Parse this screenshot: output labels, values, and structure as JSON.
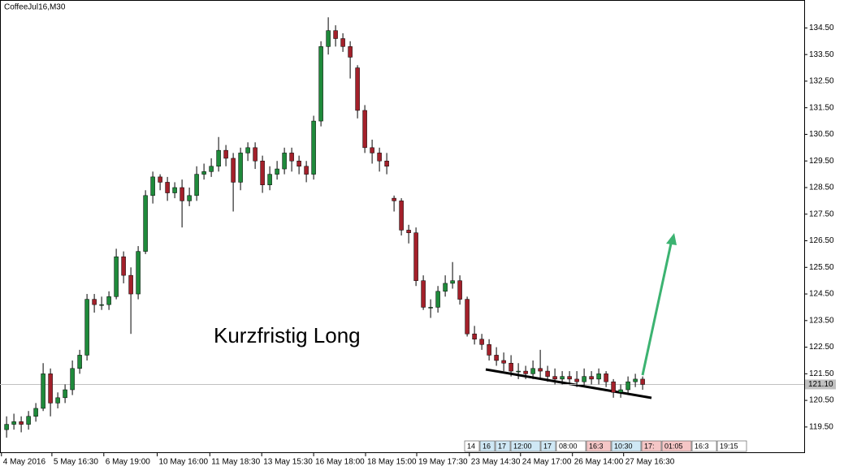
{
  "chart_data": {
    "type": "candlestick",
    "title": "CoffeeJul16,M30",
    "annotation": "Kurzfristig Long",
    "up_color": "#1f8a3b",
    "down_color": "#a3202a",
    "open": [
      119.4,
      119.6,
      119.7,
      119.6,
      119.9,
      120.2,
      121.5,
      120.4,
      120.6,
      120.9,
      121.7,
      122.2,
      124.3,
      124.1,
      124.1,
      124.4,
      125.9,
      125.2,
      124.5,
      126.1,
      128.2,
      128.9,
      128.7,
      128.3,
      128.5,
      128.0,
      128.2,
      129.0,
      129.1,
      129.3,
      129.9,
      129.6,
      128.7,
      129.8,
      130.0,
      129.5,
      128.6,
      129.0,
      129.2,
      129.8,
      129.5,
      129.3,
      129.0,
      131.0,
      133.8,
      134.4,
      134.1,
      133.8,
      133.0,
      131.4,
      130.0,
      129.8,
      129.5,
      128.1,
      128.0,
      126.9,
      126.8,
      125.0,
      124.0,
      124.0,
      124.6,
      124.9,
      125.0,
      124.3,
      123.0,
      122.8,
      122.6,
      122.2,
      122.0,
      121.9,
      121.6,
      121.6,
      121.5,
      121.7,
      121.6,
      121.4,
      121.3,
      121.4,
      121.3,
      121.2,
      121.4,
      121.3,
      121.5,
      121.2,
      120.8,
      120.9,
      121.2,
      121.3
    ],
    "high": [
      119.9,
      120.0,
      119.9,
      120.1,
      120.4,
      121.9,
      121.7,
      120.8,
      121.1,
      122.0,
      122.4,
      124.5,
      124.5,
      124.4,
      124.6,
      126.2,
      126.1,
      125.5,
      126.3,
      128.4,
      129.1,
      129.0,
      128.9,
      128.7,
      128.8,
      128.5,
      129.3,
      129.4,
      129.6,
      130.4,
      130.1,
      129.8,
      130.0,
      130.2,
      130.2,
      129.7,
      129.3,
      129.5,
      130.0,
      130.0,
      129.7,
      129.5,
      131.2,
      134.0,
      134.9,
      134.6,
      134.3,
      134.0,
      133.1,
      131.6,
      130.3,
      130.0,
      129.8,
      128.2,
      128.1,
      127.1,
      127.0,
      125.2,
      124.3,
      124.8,
      125.2,
      125.7,
      125.2,
      124.4,
      123.3,
      123.0,
      122.8,
      122.5,
      122.3,
      122.2,
      121.9,
      121.8,
      122.0,
      122.4,
      121.8,
      121.7,
      121.6,
      121.6,
      121.6,
      121.7,
      121.6,
      121.7,
      121.6,
      121.3,
      121.1,
      121.4,
      121.5,
      121.4
    ],
    "low": [
      119.1,
      119.4,
      119.3,
      119.4,
      119.7,
      120.1,
      119.9,
      120.2,
      120.4,
      120.7,
      121.5,
      122.0,
      123.8,
      123.9,
      123.9,
      124.3,
      124.9,
      123.0,
      124.3,
      126.0,
      127.9,
      128.4,
      128.0,
      128.1,
      127.0,
      127.8,
      128.0,
      128.8,
      128.9,
      129.1,
      129.3,
      127.6,
      128.4,
      129.5,
      129.2,
      128.3,
      128.4,
      128.8,
      129.0,
      129.1,
      129.0,
      128.7,
      128.8,
      130.8,
      133.5,
      133.8,
      133.6,
      132.6,
      131.1,
      129.8,
      129.4,
      129.1,
      129.0,
      127.6,
      126.7,
      126.4,
      124.8,
      123.9,
      123.6,
      123.8,
      124.4,
      124.7,
      124.1,
      122.9,
      122.6,
      122.4,
      122.0,
      121.8,
      121.6,
      121.4,
      121.3,
      121.3,
      121.3,
      121.3,
      121.2,
      121.1,
      121.1,
      121.1,
      121.0,
      121.0,
      121.1,
      121.1,
      121.0,
      120.6,
      120.6,
      120.7,
      121.0,
      120.9
    ],
    "close": [
      119.6,
      119.7,
      119.6,
      119.9,
      120.2,
      121.5,
      120.4,
      120.6,
      120.9,
      121.7,
      122.2,
      124.3,
      124.1,
      124.1,
      124.4,
      125.9,
      125.2,
      124.5,
      126.1,
      128.2,
      128.9,
      128.7,
      128.3,
      128.5,
      128.0,
      128.2,
      129.0,
      129.1,
      129.3,
      129.9,
      129.6,
      128.7,
      129.8,
      130.0,
      129.5,
      128.6,
      129.0,
      129.2,
      129.8,
      129.5,
      129.3,
      129.0,
      131.0,
      133.8,
      134.4,
      134.1,
      133.8,
      133.4,
      131.4,
      130.0,
      129.8,
      129.5,
      129.3,
      128.0,
      126.9,
      126.8,
      125.0,
      124.0,
      124.0,
      124.6,
      124.9,
      125.0,
      124.3,
      123.0,
      122.8,
      122.6,
      122.2,
      122.0,
      121.9,
      121.6,
      121.6,
      121.5,
      121.7,
      121.6,
      121.4,
      121.3,
      121.4,
      121.3,
      121.2,
      121.4,
      121.3,
      121.5,
      121.2,
      120.8,
      120.9,
      121.2,
      121.3,
      121.1
    ],
    "xlim": [
      -0.9,
      109.1
    ],
    "xticks": [
      {
        "value": -0.7,
        "label": "4 May 2016"
      },
      {
        "value": 6.2,
        "label": "5 May 16:30"
      },
      {
        "value": 13.3,
        "label": "6 May 19:00"
      },
      {
        "value": 20.6,
        "label": "10 May 16:00"
      },
      {
        "value": 27.8,
        "label": "11 May 18:30"
      },
      {
        "value": 34.9,
        "label": "13 May 15:30"
      },
      {
        "value": 42,
        "label": "16 May 18:00"
      },
      {
        "value": 49.1,
        "label": "18 May 15:00"
      },
      {
        "value": 56.1,
        "label": "19 May 17:30"
      },
      {
        "value": 63.3,
        "label": "23 May 14:30"
      },
      {
        "value": 70.3,
        "label": "24 May 17:00"
      },
      {
        "value": 77.4,
        "label": "26 May 14:00"
      },
      {
        "value": 84.4,
        "label": "27 May 16:30"
      }
    ],
    "ylim": [
      118.55,
      135.55
    ],
    "yticks": [
      {
        "value": 119.5,
        "label": "119.50"
      },
      {
        "value": 120.5,
        "label": "120.50"
      },
      {
        "value": 121.5,
        "label": "121.50"
      },
      {
        "value": 122.5,
        "label": "122.50"
      },
      {
        "value": 123.5,
        "label": "123.50"
      },
      {
        "value": 124.5,
        "label": "124.50"
      },
      {
        "value": 125.5,
        "label": "125.50"
      },
      {
        "value": 126.5,
        "label": "126.50"
      },
      {
        "value": 127.5,
        "label": "127.50"
      },
      {
        "value": 128.5,
        "label": "128.50"
      },
      {
        "value": 129.5,
        "label": "129.50"
      },
      {
        "value": 130.5,
        "label": "130.50"
      },
      {
        "value": 131.5,
        "label": "131.50"
      },
      {
        "value": 132.5,
        "label": "132.50"
      },
      {
        "value": 133.5,
        "label": "133.50"
      },
      {
        "value": 134.5,
        "label": "134.50"
      }
    ],
    "current_price": {
      "value": 121.1,
      "label": "121.10"
    },
    "session_tags": [
      "14",
      "16",
      "17",
      "12:00",
      "17",
      "08:00",
      "16:3",
      "10:30",
      "17:",
      "01:05",
      "16:3",
      "19:15"
    ],
    "session_tag_colors": [
      "#ffffff",
      "#cfe8f5",
      "#cfe8f5",
      "#cfe8f5",
      "#cfe8f5",
      "#ffffff",
      "#f5c6c6",
      "#cfe8f5",
      "#f5c6c6",
      "#f5c6c6",
      "#ffffff",
      "#ffffff"
    ]
  }
}
